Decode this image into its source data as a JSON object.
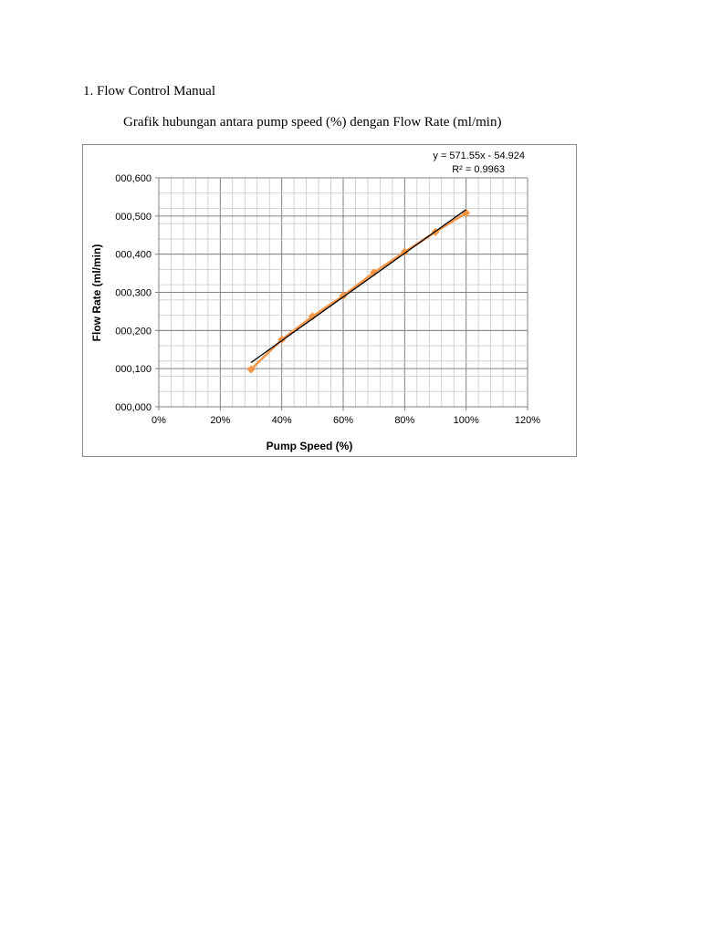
{
  "document": {
    "heading": "1. Flow Control Manual",
    "caption": "Grafik hubungan antara pump speed (%) dengan Flow Rate (ml/min)"
  },
  "chart_data": {
    "type": "scatter",
    "title": "",
    "xlabel": "Pump Speed (%)",
    "ylabel": "Flow Rate (ml/min)",
    "xlim": [
      0,
      1.2
    ],
    "ylim": [
      0,
      0.6
    ],
    "x_ticks": [
      "0%",
      "20%",
      "40%",
      "60%",
      "80%",
      "100%",
      "120%"
    ],
    "y_ticks": [
      "000,000",
      "000,100",
      "000,200",
      "000,300",
      "000,400",
      "000,500",
      "000,600"
    ],
    "grid": true,
    "series": [
      {
        "color": "#f79646",
        "points": [
          {
            "x": 0.3,
            "y": 0.098
          },
          {
            "x": 0.4,
            "y": 0.176
          },
          {
            "x": 0.5,
            "y": 0.237
          },
          {
            "x": 0.6,
            "y": 0.291
          },
          {
            "x": 0.7,
            "y": 0.352
          },
          {
            "x": 0.8,
            "y": 0.406
          },
          {
            "x": 0.9,
            "y": 0.458
          },
          {
            "x": 1.0,
            "y": 0.508
          }
        ]
      }
    ],
    "trendline": {
      "type": "linear",
      "color": "#000000",
      "x_range": [
        0.3,
        1.0
      ],
      "y_range": [
        0.116,
        0.517
      ],
      "equation": "y = 571.55x - 54.924",
      "r_squared": "R² = 0.9963"
    }
  }
}
